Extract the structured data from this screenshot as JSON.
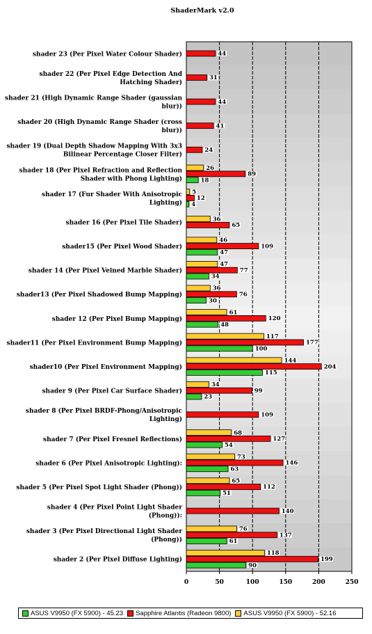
{
  "chart_data": {
    "type": "bar",
    "orientation": "horizontal",
    "title": "ShaderMark v2.0",
    "categories": [
      "shader 23 (Per Pixel Water Colour Shader)",
      "shader 22 (Per Pixel Edge Detection And Hatching Shader)",
      "shader 21 (High Dynamic Range Shader (gaussian blur))",
      "shader 20 (High Dynamic Range Shader (cross blur))",
      "shader 19 (Dual Depth Shadow Mapping With 3x3 Bilinear Percentage Closer Filter)",
      "shader 18 (Per Pixel Refraction and Reflection Shader with Phong Lighting)",
      "shader 17 (Fur Shader With Anisotropic Lighting)",
      "shader 16 (Per Pixel Tile Shader)",
      "shader15 (Per Pixel Wood Shader)",
      "shader 14 (Per Pixel Veined Marble Shader)",
      "shader13 (Per Pixel Shadowed Bump Mapping)",
      "shader 12 (Per Pixel Bump Mapping)",
      "shader11 (Per Pixel Environment Bump Mapping)",
      "shader10 (Per Pixel Environment Mapping)",
      "shader 9 (Per Pixel Car Surface Shader)",
      "shader 8 (Per Pixel BRDF-Phong/Anisotropic Lighting)",
      "shader 7 (Per Pixel Fresnel Reflections)",
      "shader  6 (Per Pixel Anisotropic Lighting):",
      "shader 5 (Per Pixel Spot Light Shader (Phong))",
      "shader 4 (Per Pixel Point Light Shader (Phong)):",
      "shader 3 (Per Pixel Directional Light Shader (Phong))",
      "shader 2 (Per Pixel Diffuse Lighting)"
    ],
    "series": [
      {
        "name": "ASUS V9950 (FX 5900) - 52.16",
        "color": "#ffcc33",
        "values": [
          null,
          null,
          null,
          null,
          null,
          26,
          5,
          36,
          46,
          47,
          36,
          61,
          117,
          144,
          34,
          null,
          68,
          73,
          65,
          null,
          76,
          118
        ]
      },
      {
        "name": "Sapphire Atlantis (Radeon 9800)",
        "color": "#ee1111",
        "values": [
          44,
          31,
          44,
          41,
          24,
          89,
          12,
          65,
          109,
          77,
          76,
          120,
          177,
          204,
          99,
          109,
          127,
          146,
          112,
          140,
          137,
          199
        ]
      },
      {
        "name": "ASUS V9950 (FX 5900) - 45.23",
        "color": "#33cc33",
        "values": [
          null,
          null,
          null,
          null,
          null,
          18,
          4,
          null,
          47,
          34,
          30,
          48,
          100,
          115,
          23,
          null,
          54,
          63,
          51,
          null,
          61,
          90
        ]
      }
    ],
    "legend_order": [
      2,
      1,
      0
    ],
    "xlim": [
      0,
      250
    ],
    "xticks": [
      0,
      50,
      100,
      150,
      200,
      250
    ],
    "grid": true,
    "legend_position": "bottom"
  },
  "colors": {
    "band_light": "#f2f2f2",
    "band_mid": "#e0e0e0",
    "band_dark": "#c8c8c8"
  }
}
